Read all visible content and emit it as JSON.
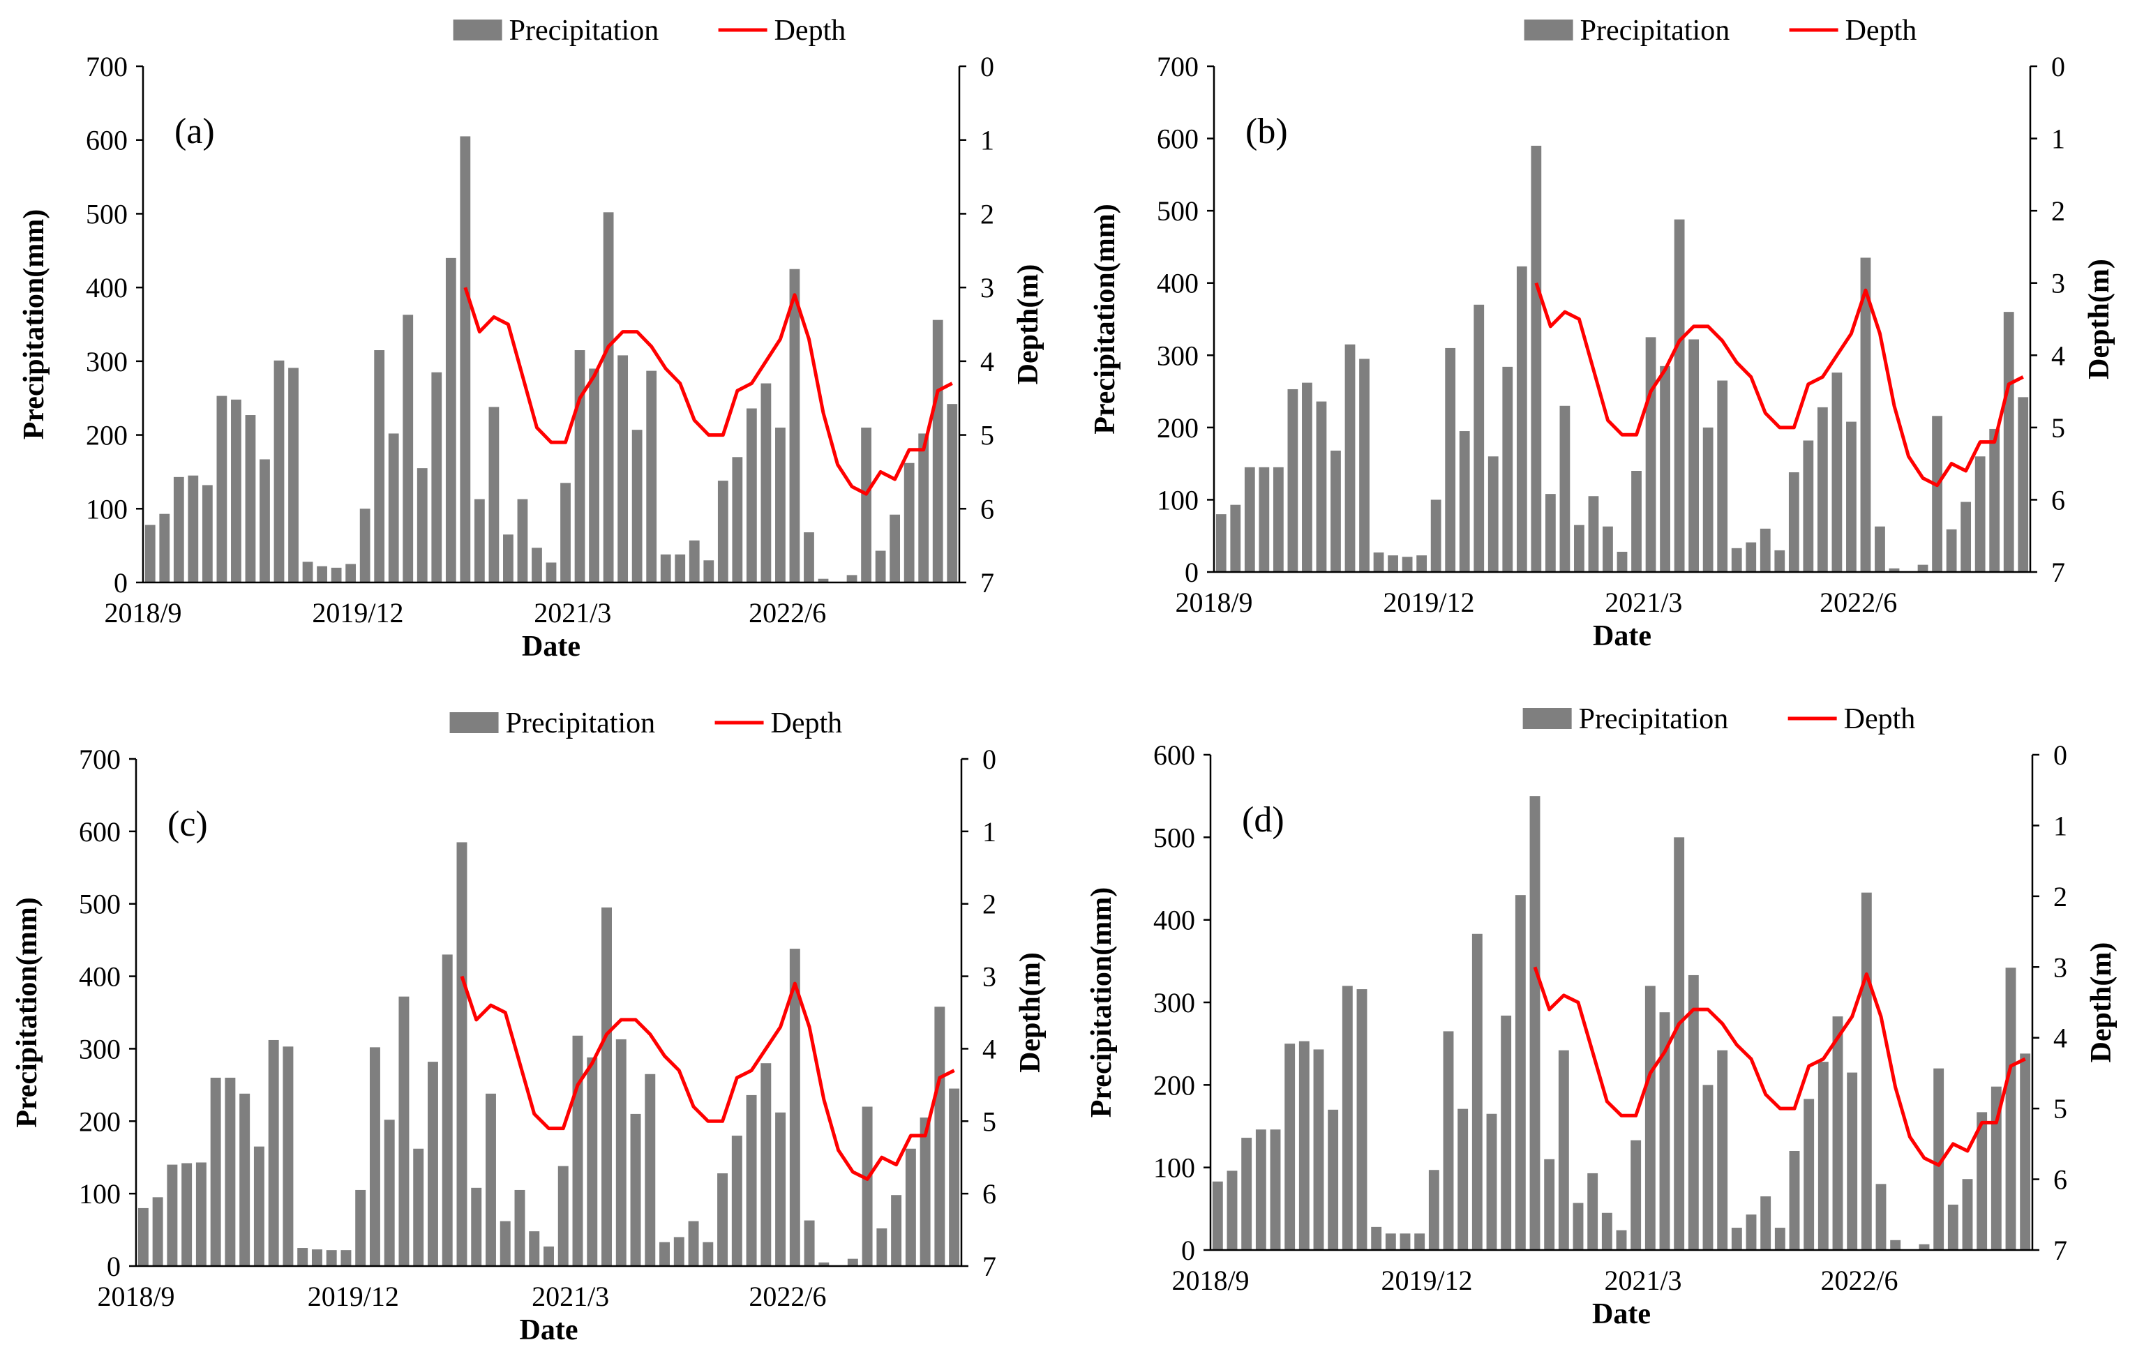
{
  "chart_data": [
    {
      "type": "bar",
      "panel_label": "(a)",
      "xlabel": "Date",
      "ylabel": "Precipitation(mm)",
      "y2label": "Depth(m)",
      "ylim": [
        0,
        700
      ],
      "y_ticks": [
        "0",
        "100",
        "200",
        "300",
        "400",
        "500",
        "600",
        "700"
      ],
      "y2lim": [
        7,
        0
      ],
      "y2_ticks": [
        "0",
        "1",
        "2",
        "3",
        "4",
        "5",
        "6",
        "7"
      ],
      "y2_inverted": true,
      "x_tick_labels": [
        {
          "label": "2018/9",
          "index": 0
        },
        {
          "label": "2019/12",
          "index": 15
        },
        {
          "label": "2021/3",
          "index": 30
        },
        {
          "label": "2022/6",
          "index": 45
        }
      ],
      "legend": [
        {
          "name": "Precipitation",
          "kind": "bar"
        },
        {
          "name": "Depth",
          "kind": "line"
        }
      ],
      "legend_position": "top-center",
      "series": [
        {
          "name": "Precipitation",
          "kind": "bar",
          "color": "#7f7f7f",
          "values": [
            78,
            93,
            143,
            145,
            132,
            253,
            248,
            227,
            167,
            301,
            291,
            28,
            22,
            20,
            25,
            100,
            315,
            202,
            363,
            155,
            285,
            440,
            605,
            113,
            238,
            65,
            113,
            47,
            27,
            135,
            315,
            290,
            502,
            308,
            207,
            287,
            38,
            38,
            57,
            30,
            138,
            170,
            236,
            270,
            210,
            425,
            68,
            5,
            0,
            10,
            210,
            43,
            92,
            162,
            202,
            356,
            242
          ]
        },
        {
          "name": "Depth",
          "kind": "line",
          "color": "#ff0000",
          "start_index": 22,
          "values": [
            3.0,
            3.6,
            3.4,
            3.5,
            4.2,
            4.9,
            5.1,
            5.1,
            4.5,
            4.2,
            3.8,
            3.6,
            3.6,
            3.8,
            4.1,
            4.3,
            4.8,
            5.0,
            5.0,
            4.4,
            4.3,
            4.0,
            3.7,
            3.1,
            3.7,
            4.7,
            5.4,
            5.7,
            5.8,
            5.5,
            5.6,
            5.2,
            5.2,
            4.4,
            4.3
          ]
        }
      ]
    },
    {
      "type": "bar",
      "panel_label": "(b)",
      "xlabel": "Date",
      "ylabel": "Precipitation(mm)",
      "y2label": "Depth(m)",
      "ylim": [
        0,
        700
      ],
      "y_ticks": [
        "0",
        "100",
        "200",
        "300",
        "400",
        "500",
        "600",
        "700"
      ],
      "y2lim": [
        7,
        0
      ],
      "y2_ticks": [
        "0",
        "1",
        "2",
        "3",
        "4",
        "5",
        "6",
        "7"
      ],
      "y2_inverted": true,
      "x_tick_labels": [
        {
          "label": "2018/9",
          "index": 0
        },
        {
          "label": "2019/12",
          "index": 15
        },
        {
          "label": "2021/3",
          "index": 30
        },
        {
          "label": "2022/6",
          "index": 45
        }
      ],
      "legend": [
        {
          "name": "Precipitation",
          "kind": "bar"
        },
        {
          "name": "Depth",
          "kind": "line"
        }
      ],
      "legend_position": "top-center",
      "series": [
        {
          "name": "Precipitation",
          "kind": "bar",
          "color": "#7f7f7f",
          "values": [
            80,
            93,
            145,
            145,
            145,
            253,
            262,
            236,
            168,
            315,
            295,
            27,
            23,
            21,
            23,
            100,
            310,
            195,
            370,
            160,
            284,
            423,
            590,
            108,
            230,
            65,
            105,
            63,
            28,
            140,
            325,
            285,
            488,
            322,
            200,
            265,
            33,
            41,
            60,
            30,
            138,
            182,
            228,
            276,
            208,
            435,
            63,
            5,
            0,
            10,
            216,
            59,
            97,
            160,
            198,
            360,
            242
          ]
        },
        {
          "name": "Depth",
          "kind": "line",
          "color": "#ff0000",
          "start_index": 22,
          "values": [
            3.0,
            3.6,
            3.4,
            3.5,
            4.2,
            4.9,
            5.1,
            5.1,
            4.5,
            4.2,
            3.8,
            3.6,
            3.6,
            3.8,
            4.1,
            4.3,
            4.8,
            5.0,
            5.0,
            4.4,
            4.3,
            4.0,
            3.7,
            3.1,
            3.7,
            4.7,
            5.4,
            5.7,
            5.8,
            5.5,
            5.6,
            5.2,
            5.2,
            4.4,
            4.3
          ]
        }
      ]
    },
    {
      "type": "bar",
      "panel_label": "(c)",
      "xlabel": "Date",
      "ylabel": "Precipitation(mm)",
      "y2label": "Depth(m)",
      "ylim": [
        0,
        700
      ],
      "y_ticks": [
        "0",
        "100",
        "200",
        "300",
        "400",
        "500",
        "600",
        "700"
      ],
      "y2lim": [
        7,
        0
      ],
      "y2_ticks": [
        "0",
        "1",
        "2",
        "3",
        "4",
        "5",
        "6",
        "7"
      ],
      "y2_inverted": true,
      "x_tick_labels": [
        {
          "label": "2018/9",
          "index": 0
        },
        {
          "label": "2019/12",
          "index": 15
        },
        {
          "label": "2021/3",
          "index": 30
        },
        {
          "label": "2022/6",
          "index": 45
        }
      ],
      "legend": [
        {
          "name": "Precipitation",
          "kind": "bar"
        },
        {
          "name": "Depth",
          "kind": "line"
        }
      ],
      "legend_position": "top-center",
      "series": [
        {
          "name": "Precipitation",
          "kind": "bar",
          "color": "#7f7f7f",
          "values": [
            80,
            95,
            140,
            142,
            143,
            260,
            260,
            238,
            165,
            312,
            303,
            25,
            23,
            22,
            22,
            105,
            302,
            202,
            372,
            162,
            282,
            430,
            585,
            108,
            238,
            62,
            105,
            48,
            27,
            138,
            318,
            288,
            495,
            313,
            210,
            265,
            33,
            40,
            62,
            33,
            128,
            180,
            236,
            280,
            212,
            438,
            63,
            5,
            0,
            10,
            220,
            52,
            98,
            162,
            205,
            358,
            245
          ]
        },
        {
          "name": "Depth",
          "kind": "line",
          "color": "#ff0000",
          "start_index": 22,
          "values": [
            3.0,
            3.6,
            3.4,
            3.5,
            4.2,
            4.9,
            5.1,
            5.1,
            4.5,
            4.2,
            3.8,
            3.6,
            3.6,
            3.8,
            4.1,
            4.3,
            4.8,
            5.0,
            5.0,
            4.4,
            4.3,
            4.0,
            3.7,
            3.1,
            3.7,
            4.7,
            5.4,
            5.7,
            5.8,
            5.5,
            5.6,
            5.2,
            5.2,
            4.4,
            4.3
          ]
        }
      ]
    },
    {
      "type": "bar",
      "panel_label": "(d)",
      "xlabel": "Date",
      "ylabel": "Precipitation(mm)",
      "y2label": "Depth(m)",
      "ylim": [
        0,
        600
      ],
      "y_ticks": [
        "0",
        "100",
        "200",
        "300",
        "400",
        "500",
        "600"
      ],
      "y2lim": [
        7,
        0
      ],
      "y2_ticks": [
        "0",
        "1",
        "2",
        "3",
        "4",
        "5",
        "6",
        "7"
      ],
      "y2_inverted": true,
      "x_tick_labels": [
        {
          "label": "2018/9",
          "index": 0
        },
        {
          "label": "2019/12",
          "index": 15
        },
        {
          "label": "2021/3",
          "index": 30
        },
        {
          "label": "2022/6",
          "index": 45
        }
      ],
      "legend": [
        {
          "name": "Precipitation",
          "kind": "bar"
        },
        {
          "name": "Depth",
          "kind": "line"
        }
      ],
      "legend_position": "top-center",
      "series": [
        {
          "name": "Precipitation",
          "kind": "bar",
          "color": "#7f7f7f",
          "values": [
            83,
            96,
            136,
            146,
            146,
            250,
            253,
            243,
            170,
            320,
            316,
            28,
            20,
            20,
            20,
            97,
            265,
            171,
            383,
            165,
            284,
            430,
            550,
            110,
            242,
            57,
            93,
            45,
            24,
            133,
            320,
            288,
            500,
            333,
            200,
            242,
            27,
            43,
            65,
            27,
            120,
            183,
            228,
            283,
            215,
            433,
            80,
            12,
            0,
            7,
            220,
            55,
            86,
            167,
            198,
            342,
            238
          ]
        },
        {
          "name": "Depth",
          "kind": "line",
          "color": "#ff0000",
          "start_index": 22,
          "values": [
            3.0,
            3.6,
            3.4,
            3.5,
            4.2,
            4.9,
            5.1,
            5.1,
            4.5,
            4.2,
            3.8,
            3.6,
            3.6,
            3.8,
            4.1,
            4.3,
            4.8,
            5.0,
            5.0,
            4.4,
            4.3,
            4.0,
            3.7,
            3.1,
            3.7,
            4.7,
            5.4,
            5.7,
            5.8,
            5.5,
            5.6,
            5.2,
            5.2,
            4.4,
            4.3
          ]
        }
      ]
    }
  ]
}
